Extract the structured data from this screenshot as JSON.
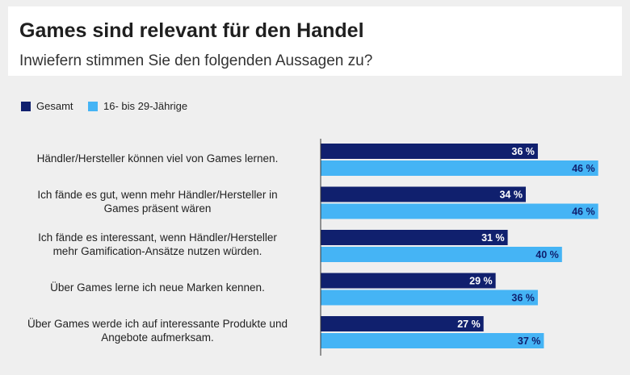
{
  "header": {
    "title": "Games sind relevant für den Handel",
    "subtitle": "Inwiefern stimmen Sie den folgenden Aussagen zu?"
  },
  "chart_data": {
    "type": "bar",
    "orientation": "horizontal",
    "title": "Games sind relevant für den Handel",
    "subtitle": "Inwiefern stimmen Sie den folgenden Aussagen zu?",
    "xlabel": "",
    "ylabel": "",
    "xlim": [
      0,
      100
    ],
    "grid": false,
    "legend_position": "top-left",
    "value_suffix": " %",
    "categories": [
      [
        "Händler/Hersteller können viel von Games lernen."
      ],
      [
        "Ich fände es gut, wenn mehr Händler/Hersteller in",
        "Games präsent wären"
      ],
      [
        "Ich fände es interessant, wenn Händler/Hersteller",
        "mehr Gamification-Ansätze nutzen würden."
      ],
      [
        "Über Games lerne ich neue Marken kennen."
      ],
      [
        "Über Games werde ich auf interessante Produkte und",
        "Angebote aufmerksam."
      ]
    ],
    "series": [
      {
        "name": "Gesamt",
        "color": "#10206e",
        "values": [
          36,
          34,
          31,
          29,
          27
        ]
      },
      {
        "name": "16- bis 29-Jährige",
        "color": "#45b4f5",
        "values": [
          46,
          46,
          40,
          36,
          37
        ]
      }
    ],
    "axis_color": "#333333"
  }
}
